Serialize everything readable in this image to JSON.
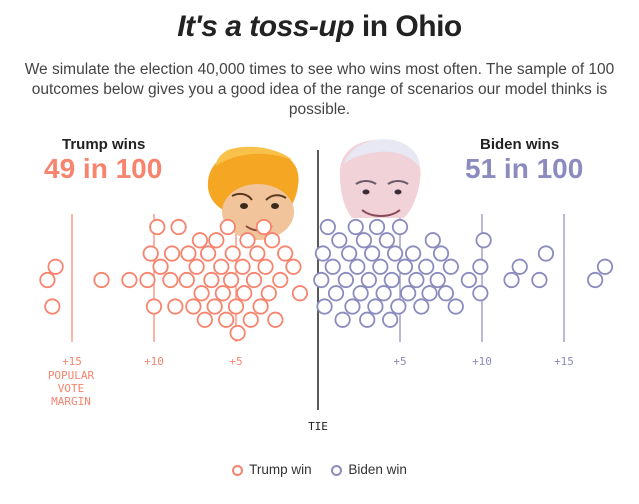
{
  "title": {
    "part_italic": "It's a toss-up",
    "part_plain": " in Ohio"
  },
  "subtitle": "We simulate the election 40,000 times to see who wins most often. The sample of 100 outcomes below gives you a good idea of the range of scenarios our model thinks is possible.",
  "colors": {
    "trump": "#f7846e",
    "biden": "#8b8bbf",
    "axis": "#222222"
  },
  "trump": {
    "label": "Trump wins",
    "count": "49 in 100"
  },
  "biden": {
    "label": "Biden wins",
    "count": "51 in 100"
  },
  "chart_data": {
    "type": "scatter",
    "title": "It's a toss-up in Ohio",
    "xlabel": "POPULAR VOTE MARGIN",
    "center_label": "TIE",
    "ticks": [
      {
        "value": -15,
        "label": "+15"
      },
      {
        "value": -10,
        "label": "+10"
      },
      {
        "value": -5,
        "label": "+5"
      },
      {
        "value": 5,
        "label": "+5"
      },
      {
        "value": 10,
        "label": "+10"
      },
      {
        "value": 15,
        "label": "+15"
      }
    ],
    "axis_label_lines": [
      "POPULAR",
      "VOTE",
      "MARGIN"
    ],
    "xlim": [
      -17.5,
      17.5
    ],
    "series": [
      {
        "name": "Trump win",
        "values": [
          -16.5,
          -16.0,
          -16.2,
          -13.2,
          -11.5,
          -10.4,
          -10.2,
          -10.0,
          -9.8,
          -9.6,
          -9.0,
          -8.9,
          -8.7,
          -8.5,
          -8.0,
          -7.9,
          -7.6,
          -7.4,
          -7.2,
          -7.1,
          -6.9,
          -6.7,
          -6.5,
          -6.3,
          -6.2,
          -5.9,
          -5.8,
          -5.6,
          -5.5,
          -5.3,
          -5.2,
          -5.0,
          -4.9,
          -4.6,
          -4.5,
          -4.3,
          -4.1,
          -3.9,
          -3.7,
          -3.5,
          -3.3,
          -3.2,
          -3.0,
          -2.8,
          -2.6,
          -2.3,
          -2.0,
          -1.5,
          -1.1
        ]
      },
      {
        "name": "Biden win",
        "values": [
          0.2,
          0.3,
          0.4,
          0.6,
          0.9,
          1.1,
          1.3,
          1.5,
          1.7,
          1.9,
          2.1,
          2.3,
          2.4,
          2.6,
          2.8,
          3.0,
          3.1,
          3.3,
          3.5,
          3.6,
          3.8,
          4.0,
          4.2,
          4.4,
          4.5,
          4.7,
          4.9,
          5.0,
          5.3,
          5.5,
          5.8,
          6.0,
          6.3,
          6.6,
          6.8,
          7.0,
          7.3,
          7.5,
          7.8,
          8.1,
          8.4,
          9.2,
          9.9,
          9.9,
          10.1,
          11.8,
          12.3,
          13.5,
          13.9,
          16.9,
          17.5
        ]
      }
    ],
    "legend": [
      "Trump win",
      "Biden win"
    ],
    "legend_position": "bottom-center"
  }
}
